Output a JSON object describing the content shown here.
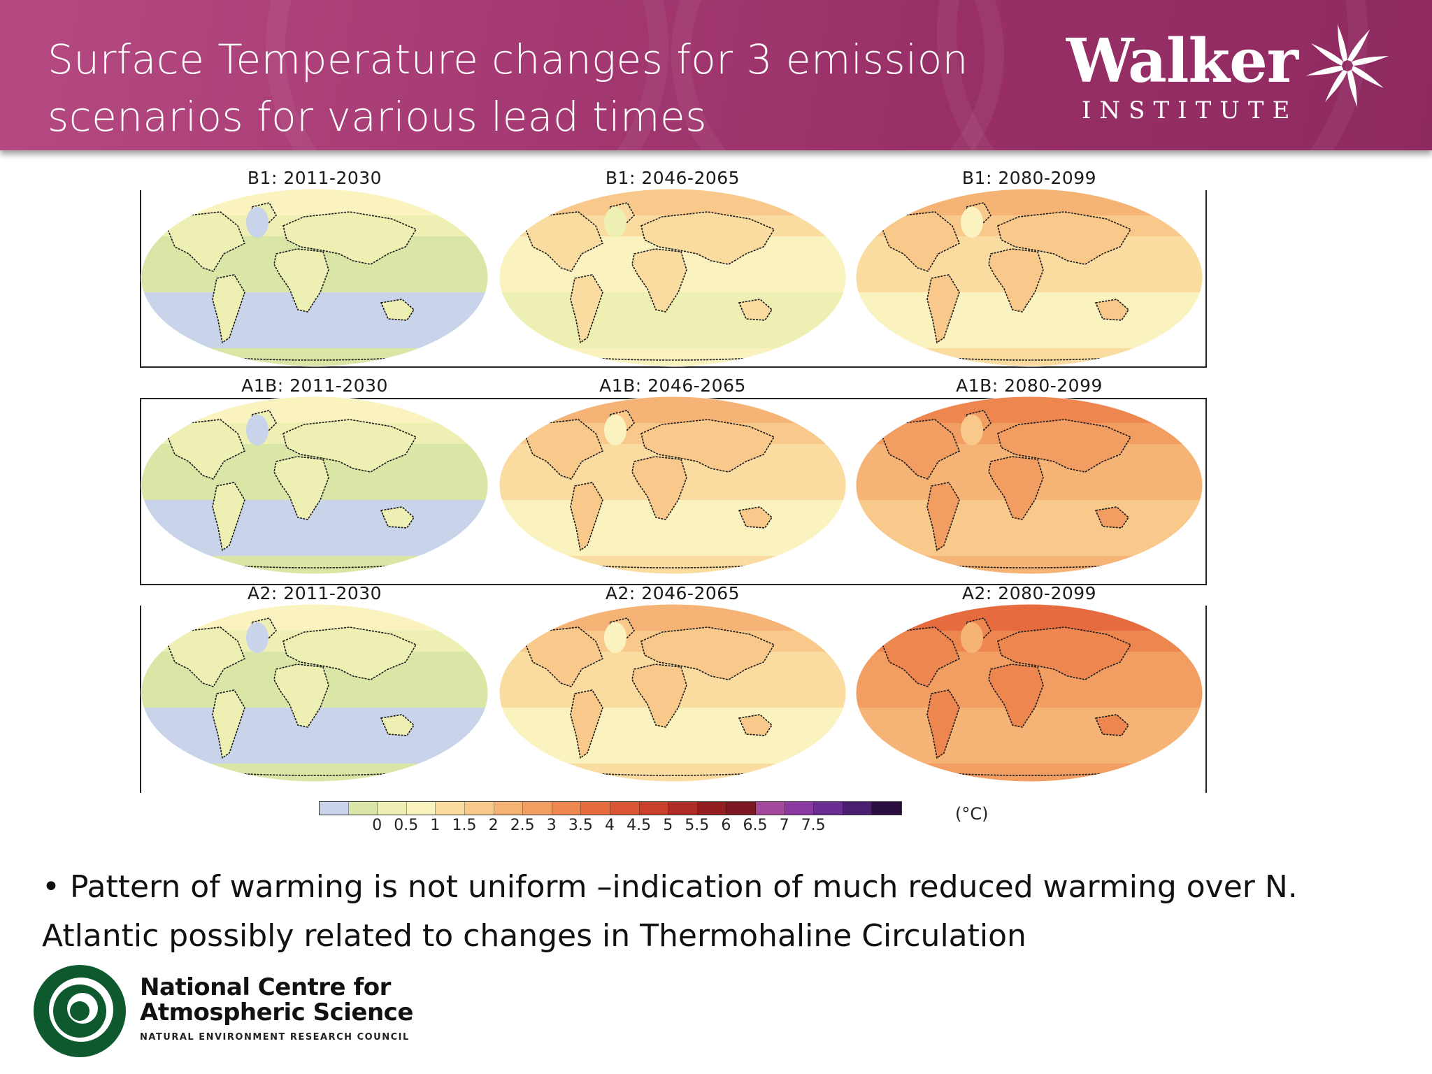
{
  "slide": {
    "title": "Surface Temperature changes for 3 emission scenarios for various lead times",
    "logo": {
      "name": "Walker",
      "subtitle": "INSTITUTE"
    },
    "bullet": "• Pattern of warming is not uniform –indication of much reduced warming over N. Atlantic possibly related to changes in Thermohaline Circulation",
    "footer_logo": {
      "line1": "National Centre for",
      "line2": "Atmospheric Science",
      "line3": "NATURAL ENVIRONMENT RESEARCH COUNCIL"
    }
  },
  "figure": {
    "panels": [
      {
        "title": "B1: 2011-2030",
        "scenario": "B1",
        "period": "2011-2030",
        "base_level": 1
      },
      {
        "title": "B1: 2046-2065",
        "scenario": "B1",
        "period": "2046-2065",
        "base_level": 3
      },
      {
        "title": "B1: 2080-2099",
        "scenario": "B1",
        "period": "2080-2099",
        "base_level": 4
      },
      {
        "title": "A1B: 2011-2030",
        "scenario": "A1B",
        "period": "2011-2030",
        "base_level": 1
      },
      {
        "title": "A1B: 2046-2065",
        "scenario": "A1B",
        "period": "2046-2065",
        "base_level": 4
      },
      {
        "title": "A1B: 2080-2099",
        "scenario": "A1B",
        "period": "2080-2099",
        "base_level": 6
      },
      {
        "title": "A2: 2011-2030",
        "scenario": "A2",
        "period": "2011-2030",
        "base_level": 1
      },
      {
        "title": "A2: 2046-2065",
        "scenario": "A2",
        "period": "2046-2065",
        "base_level": 4
      },
      {
        "title": "A2: 2080-2099",
        "scenario": "A2",
        "period": "2080-2099",
        "base_level": 7
      }
    ],
    "colorbar": {
      "colors": [
        "#c9d3ea",
        "#d9e6a6",
        "#eef0b3",
        "#fbf3bf",
        "#fbdca0",
        "#f8c98a",
        "#f5b476",
        "#f29e62",
        "#ee864f",
        "#e66b3e",
        "#da5533",
        "#c8402c",
        "#b02d27",
        "#921e22",
        "#7a1720",
        "#a3489b",
        "#8a3aa0",
        "#6b2d93",
        "#4a1f6f",
        "#2b0f40"
      ],
      "tick_labels": [
        "0",
        "0.5",
        "1",
        "1.5",
        "2",
        "2.5",
        "3",
        "3.5",
        "4",
        "4.5",
        "5",
        "5.5",
        "6",
        "6.5",
        "7",
        "7.5"
      ],
      "units": "(°C)"
    }
  }
}
